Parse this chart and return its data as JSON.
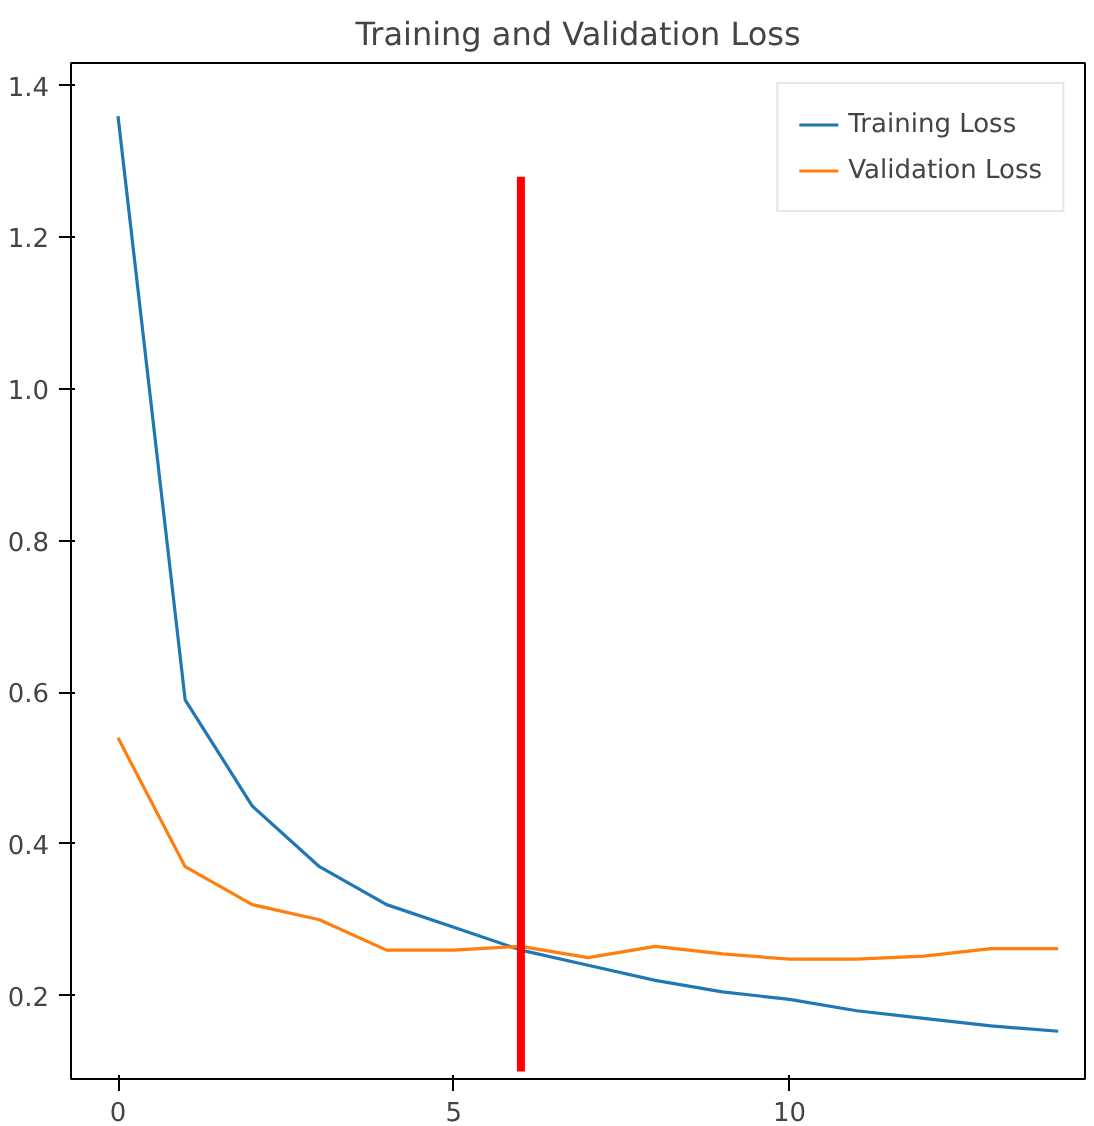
{
  "chart_data": {
    "type": "line",
    "title": "Training and Validation Loss",
    "x": [
      0,
      1,
      2,
      3,
      4,
      5,
      6,
      7,
      8,
      9,
      10,
      11,
      12,
      13,
      14
    ],
    "series": [
      {
        "name": "Training Loss",
        "color": "#1f77b4",
        "values": [
          1.36,
          0.59,
          0.45,
          0.37,
          0.32,
          0.29,
          0.26,
          0.24,
          0.22,
          0.205,
          0.195,
          0.18,
          0.17,
          0.16,
          0.153
        ]
      },
      {
        "name": "Validation Loss",
        "color": "#ff7f0e",
        "values": [
          0.54,
          0.37,
          0.32,
          0.3,
          0.26,
          0.26,
          0.265,
          0.25,
          0.265,
          0.255,
          0.248,
          0.248,
          0.252,
          0.262,
          0.262
        ]
      },
      {
        "color": "#ff0000",
        "x": [
          6,
          6
        ],
        "values": [
          0.1,
          1.28
        ]
      }
    ],
    "xlim": [
      -0.7,
      14.4
    ],
    "ylim": [
      0.09,
      1.43
    ],
    "xticks": [
      0,
      5,
      10
    ],
    "yticks": [
      0.2,
      0.4,
      0.6,
      0.8,
      {
        "value": 1,
        "label": "1.0"
      },
      1.2,
      1.4
    ],
    "legend": "top right",
    "grid": false
  }
}
